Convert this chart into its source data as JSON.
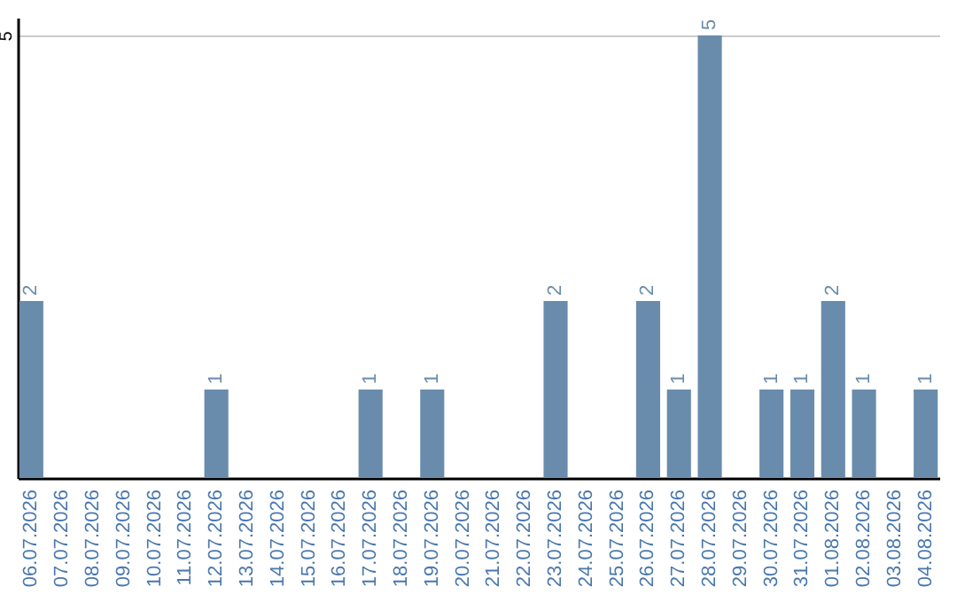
{
  "chart_data": {
    "type": "bar",
    "categories": [
      "06.07.2026",
      "07.07.2026",
      "08.07.2026",
      "09.07.2026",
      "10.07.2026",
      "11.07.2026",
      "12.07.2026",
      "13.07.2026",
      "14.07.2026",
      "15.07.2026",
      "16.07.2026",
      "17.07.2026",
      "18.07.2026",
      "19.07.2026",
      "20.07.2026",
      "21.07.2026",
      "22.07.2026",
      "23.07.2026",
      "24.07.2026",
      "25.07.2026",
      "26.07.2026",
      "27.07.2026",
      "28.07.2026",
      "29.07.2026",
      "30.07.2026",
      "31.07.2026",
      "01.08.2026",
      "02.08.2026",
      "03.08.2026",
      "04.08.2026"
    ],
    "values": [
      2,
      0,
      0,
      0,
      0,
      0,
      1,
      0,
      0,
      0,
      0,
      1,
      0,
      1,
      0,
      0,
      0,
      2,
      0,
      0,
      2,
      1,
      5,
      0,
      1,
      1,
      2,
      1,
      0,
      1
    ],
    "value_labels": [
      "2",
      null,
      null,
      null,
      null,
      null,
      "1",
      null,
      null,
      null,
      null,
      "1",
      null,
      "1",
      null,
      null,
      null,
      "2",
      null,
      null,
      "2",
      "1",
      "5",
      null,
      "1",
      "1",
      "2",
      "1",
      null,
      "1"
    ],
    "color": "#6a8cac",
    "ylim": [
      0,
      5.2
    ],
    "yticks": [
      5
    ],
    "grid": "y"
  }
}
